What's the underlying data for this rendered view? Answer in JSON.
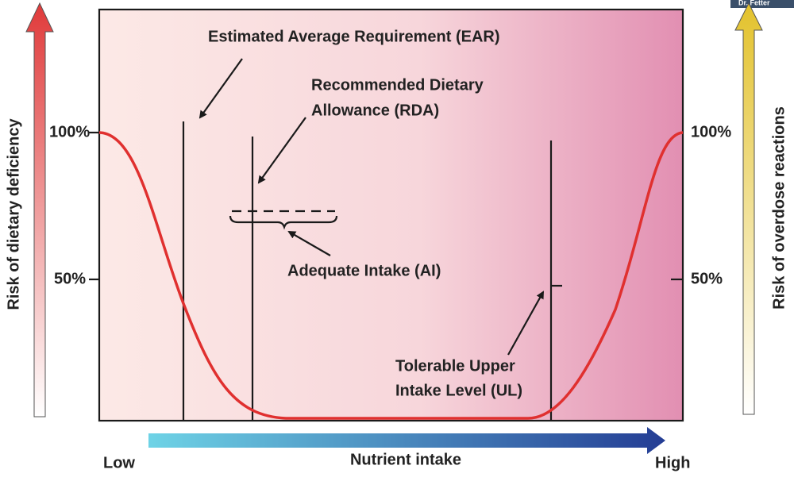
{
  "watermark": "Dr. Fetter",
  "left_axis": {
    "label": "Risk of dietary deficiency",
    "ticks": [
      "100%",
      "50%"
    ]
  },
  "right_axis": {
    "label": "Risk of overdose reactions",
    "ticks": [
      "100%",
      "50%"
    ]
  },
  "annotations": {
    "ear": "Estimated Average Requirement (EAR)",
    "rda": [
      "Recommended Dietary",
      "Allowance (RDA)"
    ],
    "ai": "Adequate Intake (AI)",
    "ul": [
      "Tolerable Upper",
      "Intake Level (UL)"
    ]
  },
  "x_axis": {
    "low": "Low",
    "label": "Nutrient intake",
    "high": "High"
  }
}
